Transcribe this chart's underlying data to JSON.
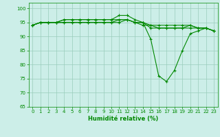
{
  "xlabel": "Humidité relative (%)",
  "xlim": [
    -0.5,
    23.5
  ],
  "ylim": [
    65,
    102
  ],
  "yticks": [
    65,
    70,
    75,
    80,
    85,
    90,
    95,
    100
  ],
  "xticks": [
    0,
    1,
    2,
    3,
    4,
    5,
    6,
    7,
    8,
    9,
    10,
    11,
    12,
    13,
    14,
    15,
    16,
    17,
    18,
    19,
    20,
    21,
    22,
    23
  ],
  "background_color": "#cceee8",
  "grid_color": "#99ccbb",
  "line_color": "#008800",
  "series": [
    [
      94,
      95,
      95,
      95,
      96,
      96,
      96,
      96,
      96,
      96,
      96,
      97.5,
      97.5,
      96,
      95,
      89,
      76,
      74,
      78,
      85,
      91,
      92,
      93,
      92
    ],
    [
      94,
      95,
      95,
      95,
      96,
      96,
      96,
      96,
      96,
      96,
      96,
      96,
      96,
      95,
      95,
      93,
      93,
      93,
      93,
      93,
      94,
      93,
      93,
      92
    ],
    [
      94,
      95,
      95,
      95,
      95,
      95,
      95,
      95,
      95,
      95,
      95,
      96,
      96,
      95,
      95,
      94,
      94,
      94,
      94,
      94,
      94,
      93,
      93,
      92
    ],
    [
      94,
      95,
      95,
      95,
      95,
      95,
      95,
      95,
      95,
      95,
      95,
      95,
      96,
      95,
      94,
      94,
      93,
      93,
      93,
      93,
      93,
      93,
      93,
      92
    ]
  ],
  "marker": "+",
  "markersize": 3,
  "linewidth": 0.8,
  "tick_fontsize": 5,
  "xlabel_fontsize": 6
}
